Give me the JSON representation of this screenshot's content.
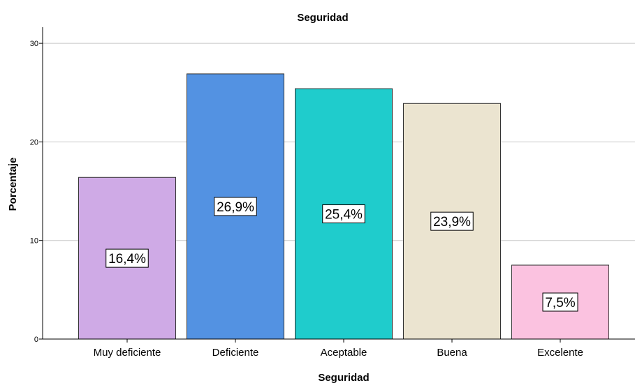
{
  "chart_data": {
    "type": "bar",
    "title": "Seguridad",
    "xlabel": "Seguridad",
    "ylabel": "Porcentaje",
    "categories": [
      "Muy deficiente",
      "Deficiente",
      "Aceptable",
      "Buena",
      "Excelente"
    ],
    "values": [
      16.4,
      26.9,
      25.4,
      23.9,
      7.5
    ],
    "data_labels": [
      "16,4%",
      "26,9%",
      "25,4%",
      "23,9%",
      "7,5%"
    ],
    "colors": [
      "#cfaae6",
      "#5392e2",
      "#1fcccc",
      "#ebe4d0",
      "#fbc2e0"
    ],
    "ylim": [
      0,
      31.5
    ],
    "yticks": [
      0,
      10,
      20,
      30
    ],
    "grid": true,
    "legend": "none"
  }
}
